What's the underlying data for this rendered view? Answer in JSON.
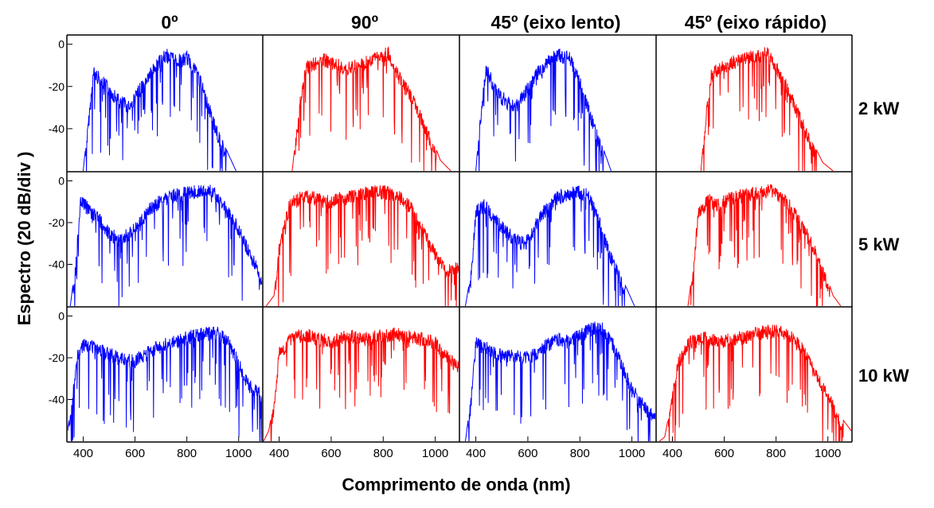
{
  "chart_data": {
    "type": "line",
    "columns": [
      "0º",
      "90º",
      "45º (eixo lento)",
      "45º (eixo rápido)"
    ],
    "rows": [
      "2 kW",
      "5 kW",
      "10 kW"
    ],
    "xlabel": "Comprimento de onda (nm)",
    "ylabel": "Espectro  (20 dB/div )",
    "xlim": [
      340,
      1090
    ],
    "ylim": [
      -60,
      4
    ],
    "xticks": [
      400,
      600,
      800,
      1000
    ],
    "yticks": [
      0,
      -20,
      -40
    ],
    "colors": {
      "0º": "#0000ff",
      "90º": "#ff0000",
      "45º (eixo lento)": "#0000ff",
      "45º (eixo rápido)": "#ff0000"
    },
    "panels": [
      {
        "row": "2 kW",
        "column": "0º",
        "x": [
          400,
          420,
          440,
          470,
          500,
          540,
          580,
          620,
          640,
          680,
          720,
          760,
          780,
          800,
          840,
          880,
          920,
          960,
          990
        ],
        "y": [
          -60,
          -35,
          -10,
          -14,
          -18,
          -24,
          -26,
          -18,
          -14,
          -7,
          -2,
          -4,
          -5,
          -3,
          -10,
          -25,
          -40,
          -52,
          -60
        ]
      },
      {
        "row": "2 kW",
        "column": "90º",
        "x": [
          450,
          480,
          500,
          540,
          580,
          620,
          660,
          700,
          740,
          780,
          820,
          860,
          900,
          940,
          980,
          1020,
          1060
        ],
        "y": [
          -60,
          -25,
          -8,
          -6,
          -4,
          -6,
          -8,
          -7,
          -5,
          -2,
          -1,
          -12,
          -20,
          -30,
          -42,
          -55,
          -60
        ]
      },
      {
        "row": "2 kW",
        "column": "45º (eixo lento)",
        "x": [
          400,
          420,
          440,
          460,
          480,
          520,
          560,
          600,
          640,
          680,
          720,
          760,
          800,
          840,
          880,
          920
        ],
        "y": [
          -60,
          -30,
          -8,
          -14,
          -20,
          -24,
          -26,
          -17,
          -10,
          -4,
          -2,
          -3,
          -15,
          -30,
          -46,
          -60
        ]
      },
      {
        "row": "2 kW",
        "column": "45º (eixo rápido)",
        "x": [
          510,
          530,
          550,
          580,
          620,
          660,
          700,
          740,
          760,
          780,
          820,
          860,
          900,
          940,
          980,
          1020
        ],
        "y": [
          -60,
          -30,
          -12,
          -8,
          -6,
          -4,
          -3,
          -2,
          0,
          -4,
          -12,
          -22,
          -34,
          -46,
          -56,
          -60
        ]
      },
      {
        "row": "5 kW",
        "column": "0º",
        "x": [
          350,
          370,
          390,
          420,
          460,
          500,
          540,
          580,
          620,
          660,
          700,
          740,
          780,
          820,
          860,
          900,
          940,
          1000,
          1060,
          1090
        ],
        "y": [
          -60,
          -40,
          -6,
          -10,
          -15,
          -22,
          -25,
          -22,
          -16,
          -10,
          -6,
          -4,
          -3,
          -2,
          -1,
          -2,
          -8,
          -20,
          -36,
          -45
        ]
      },
      {
        "row": "5 kW",
        "column": "90º",
        "x": [
          350,
          380,
          400,
          440,
          480,
          520,
          560,
          600,
          640,
          680,
          720,
          760,
          800,
          840,
          880,
          920,
          960,
          1000,
          1040,
          1090
        ],
        "y": [
          -60,
          -55,
          -30,
          -8,
          -5,
          -4,
          -6,
          -7,
          -5,
          -4,
          -3,
          -2,
          -2,
          -3,
          -6,
          -12,
          -22,
          -32,
          -40,
          -38
        ]
      },
      {
        "row": "5 kW",
        "column": "45º (eixo lento)",
        "x": [
          360,
          380,
          400,
          430,
          470,
          510,
          550,
          590,
          630,
          670,
          710,
          750,
          790,
          830,
          870,
          910,
          960,
          1010
        ],
        "y": [
          -60,
          -45,
          -12,
          -8,
          -15,
          -20,
          -25,
          -27,
          -18,
          -10,
          -5,
          -3,
          -2,
          -3,
          -15,
          -30,
          -46,
          -60
        ]
      },
      {
        "row": "5 kW",
        "column": "45º (eixo rápido)",
        "x": [
          460,
          480,
          500,
          540,
          580,
          620,
          660,
          700,
          740,
          780,
          820,
          860,
          900,
          940,
          980,
          1020,
          1050
        ],
        "y": [
          -60,
          -40,
          -12,
          -6,
          -8,
          -5,
          -4,
          -3,
          -2,
          -1,
          -4,
          -10,
          -18,
          -28,
          -40,
          -55,
          -60
        ]
      },
      {
        "row": "10 kW",
        "column": "0º",
        "x": [
          340,
          360,
          380,
          400,
          440,
          480,
          520,
          560,
          600,
          640,
          680,
          720,
          760,
          800,
          840,
          880,
          920,
          960,
          1000,
          1040,
          1090
        ],
        "y": [
          -55,
          -35,
          -15,
          -10,
          -12,
          -14,
          -16,
          -18,
          -18,
          -15,
          -12,
          -10,
          -9,
          -7,
          -6,
          -5,
          -5,
          -8,
          -20,
          -30,
          -35
        ]
      },
      {
        "row": "10 kW",
        "column": "90º",
        "x": [
          340,
          360,
          380,
          400,
          440,
          480,
          520,
          560,
          600,
          640,
          680,
          720,
          760,
          800,
          840,
          880,
          920,
          960,
          1000,
          1040,
          1090
        ],
        "y": [
          -60,
          -55,
          -40,
          -15,
          -8,
          -6,
          -6,
          -8,
          -9,
          -7,
          -6,
          -8,
          -7,
          -6,
          -5,
          -6,
          -7,
          -8,
          -10,
          -15,
          -22
        ]
      },
      {
        "row": "10 kW",
        "column": "45º (eixo lento)",
        "x": [
          360,
          380,
          400,
          440,
          480,
          520,
          560,
          600,
          640,
          680,
          720,
          760,
          800,
          840,
          880,
          920,
          960,
          1000,
          1060,
          1090
        ],
        "y": [
          -60,
          -40,
          -10,
          -12,
          -15,
          -16,
          -15,
          -17,
          -14,
          -10,
          -8,
          -9,
          -6,
          -3,
          -2,
          -8,
          -20,
          -32,
          -42,
          -46
        ]
      },
      {
        "row": "10 kW",
        "column": "45º (eixo rápido)",
        "x": [
          350,
          370,
          390,
          420,
          460,
          500,
          540,
          580,
          620,
          660,
          700,
          740,
          780,
          820,
          860,
          900,
          940,
          980,
          1020,
          1060,
          1090
        ],
        "y": [
          -60,
          -58,
          -45,
          -20,
          -10,
          -8,
          -7,
          -9,
          -8,
          -7,
          -6,
          -5,
          -4,
          -4,
          -7,
          -12,
          -22,
          -30,
          -40,
          -50,
          -55
        ]
      }
    ]
  }
}
